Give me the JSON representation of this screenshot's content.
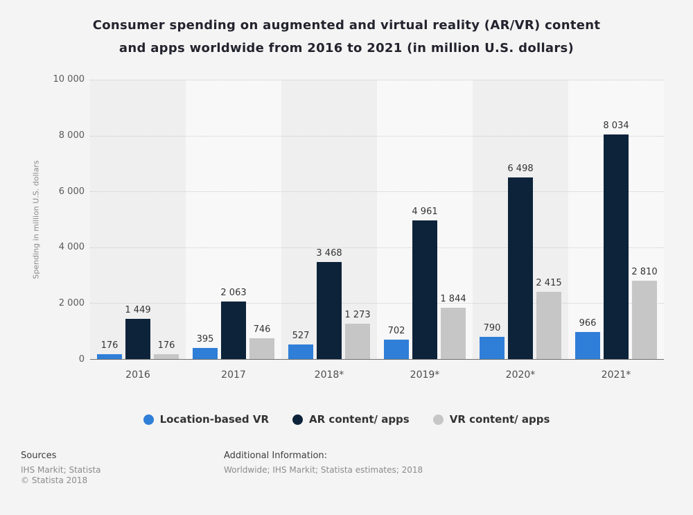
{
  "title_line1": "Consumer spending on augmented and virtual reality (AR/VR) content",
  "title_line2": "and apps worldwide from 2016 to 2021 (in million U.S. dollars)",
  "chart_data": {
    "type": "bar",
    "title": "Consumer spending on augmented and virtual reality (AR/VR) content and apps worldwide from 2016 to 2021 (in million U.S. dollars)",
    "xlabel": "",
    "ylabel": "Spending in million U.S. dollars",
    "ylim": [
      0,
      10000
    ],
    "grid": true,
    "legend_position": "bottom",
    "y_ticks": [
      {
        "value": 0,
        "label": "0"
      },
      {
        "value": 2000,
        "label": "2 000"
      },
      {
        "value": 4000,
        "label": "4 000"
      },
      {
        "value": 6000,
        "label": "6 000"
      },
      {
        "value": 8000,
        "label": "8 000"
      },
      {
        "value": 10000,
        "label": "10 000"
      }
    ],
    "categories": [
      "2016",
      "2017",
      "2018*",
      "2019*",
      "2020*",
      "2021*"
    ],
    "series": [
      {
        "name": "Location-based VR",
        "color": "#2f7ed8",
        "values": [
          176,
          395,
          527,
          702,
          790,
          966
        ],
        "labels": [
          "176",
          "395",
          "527",
          "702",
          "790",
          "966"
        ]
      },
      {
        "name": "AR content/ apps",
        "color": "#0d233a",
        "values": [
          1449,
          2063,
          3468,
          4961,
          6498,
          8034
        ],
        "labels": [
          "1 449",
          "2 063",
          "3 468",
          "4 961",
          "6 498",
          "8 034"
        ]
      },
      {
        "name": "VR content/ apps",
        "color": "#c6c6c6",
        "values": [
          176,
          746,
          1273,
          1844,
          2415,
          2810
        ],
        "labels": [
          "176",
          "746",
          "1 273",
          "1 844",
          "2 415",
          "2 810"
        ]
      }
    ]
  },
  "footer": {
    "sources_heading": "Sources",
    "sources_line": "IHS Markit; Statista",
    "copyright": "© Statista 2018",
    "additional_heading": "Additional Information:",
    "additional_line": "Worldwide; IHS Markit; Statista estimates; 2018"
  }
}
